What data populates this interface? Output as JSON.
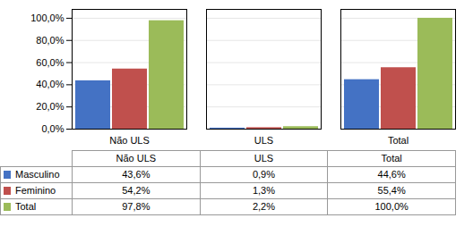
{
  "chart_data": {
    "type": "bar",
    "categories": [
      "Não ULS",
      "ULS",
      "Total"
    ],
    "series": [
      {
        "name": "Masculino",
        "color": "#4472C4",
        "values": [
          43.6,
          0.9,
          44.6
        ],
        "value_labels": [
          "43,6%",
          "0,9%",
          "44,6%"
        ]
      },
      {
        "name": "Feminino",
        "color": "#C0504D",
        "values": [
          54.2,
          1.3,
          55.4
        ],
        "value_labels": [
          "54,2%",
          "1,3%",
          "55,4%"
        ]
      },
      {
        "name": "Total",
        "color": "#9BBB59",
        "values": [
          97.8,
          2.2,
          100.0
        ],
        "value_labels": [
          "97,8%",
          "2,2%",
          "100,0%"
        ]
      }
    ],
    "ylim": [
      0,
      108
    ],
    "yticks": [
      {
        "value": 0,
        "label": "0,0%"
      },
      {
        "value": 20,
        "label": "20,0%"
      },
      {
        "value": 40,
        "label": "40,0%"
      },
      {
        "value": 60,
        "label": "60,0%"
      },
      {
        "value": 80,
        "label": "80,0%"
      },
      {
        "value": 100,
        "label": "100,0%"
      }
    ],
    "grid": true,
    "legend": "bottom"
  }
}
